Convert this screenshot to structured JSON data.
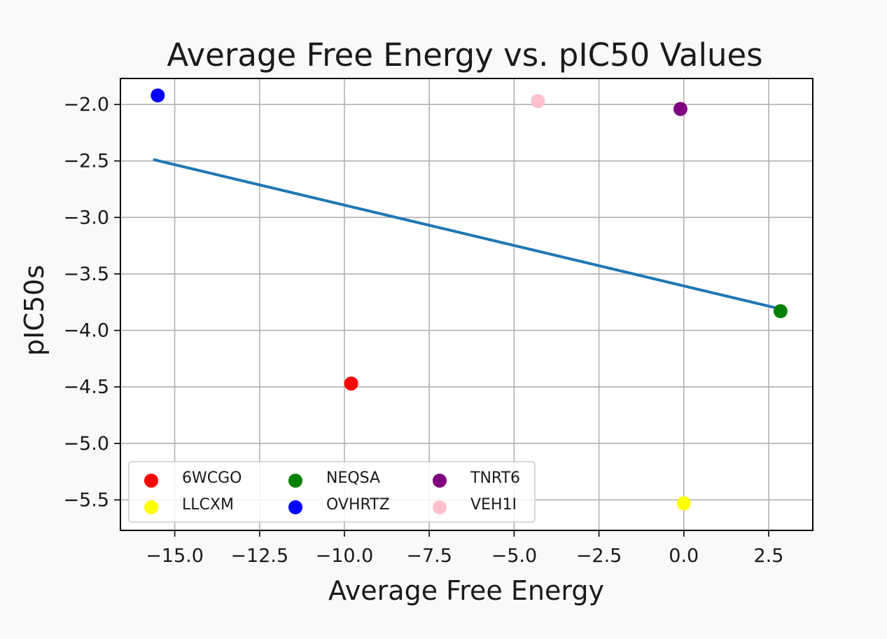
{
  "chart_data": {
    "type": "scatter",
    "title": "Average Free Energy vs. pIC50 Values",
    "xlabel": "Average Free Energy",
    "ylabel": "pIC50s",
    "xlim": [
      -16.6,
      3.8
    ],
    "ylim": [
      -5.77,
      -1.77
    ],
    "xticks": [
      -15.0,
      -12.5,
      -10.0,
      -7.5,
      -5.0,
      -2.5,
      0.0,
      2.5
    ],
    "xtick_labels": [
      "−15.0",
      "−12.5",
      "−10.0",
      "−7.5",
      "−5.0",
      "−2.5",
      "0.0",
      "2.5"
    ],
    "yticks": [
      -2.0,
      -2.5,
      -3.0,
      -3.5,
      -4.0,
      -4.5,
      -5.0,
      -5.5
    ],
    "ytick_labels": [
      "−2.0",
      "−2.5",
      "−3.0",
      "−3.5",
      "−4.0",
      "−4.5",
      "−5.0",
      "−5.5"
    ],
    "grid": true,
    "legend_position": "lower-left",
    "legend_columns": 3,
    "series": [
      {
        "name": "6WCGO",
        "color": "#ff0000",
        "x": [
          -9.8
        ],
        "y": [
          -4.47
        ]
      },
      {
        "name": "LLCXM",
        "color": "#ffff00",
        "x": [
          0.0
        ],
        "y": [
          -5.53
        ]
      },
      {
        "name": "NEQSA",
        "color": "#008000",
        "x": [
          2.85
        ],
        "y": [
          -3.83
        ]
      },
      {
        "name": "OVHRTZ",
        "color": "#0000ff",
        "x": [
          -15.5
        ],
        "y": [
          -1.92
        ]
      },
      {
        "name": "TNRT6",
        "color": "#800080",
        "x": [
          -0.1
        ],
        "y": [
          -2.04
        ]
      },
      {
        "name": "VEH1I",
        "color": "#ffc0cb",
        "x": [
          -4.3
        ],
        "y": [
          -1.97
        ]
      }
    ],
    "fit_line": {
      "color": "#1f77b4",
      "x": [
        -15.6,
        2.85
      ],
      "y": [
        -2.49,
        -3.81
      ]
    }
  }
}
